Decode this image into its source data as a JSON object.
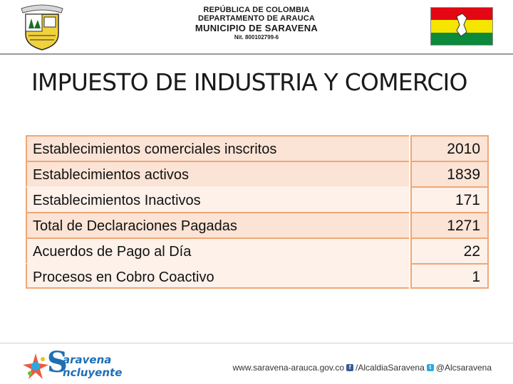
{
  "header": {
    "line1": "REPÚBLICA DE COLOMBIA",
    "line2": "DEPARTAMENTO DE ARAUCA",
    "line3": "MUNICIPIO DE SARAVENA",
    "line4": "Nit. 800102799-6"
  },
  "title": "IMPUESTO DE INDUSTRIA Y COMERCIO",
  "table": {
    "rows": [
      {
        "label": "Establecimientos comerciales inscritos",
        "value": "2010"
      },
      {
        "label": "Establecimientos activos",
        "value": "1839"
      },
      {
        "label": "Establecimientos Inactivos",
        "value": "171"
      },
      {
        "label": "Total de Declaraciones Pagadas",
        "value": "1271"
      },
      {
        "label": "Acuerdos de Pago al Día",
        "value": "22"
      },
      {
        "label": "Procesos en Cobro Coactivo",
        "value": "1"
      }
    ]
  },
  "footer": {
    "brand_line1": "aravena",
    "brand_line2": "ncluyente",
    "website": "www.saravena-arauca.gov.co",
    "facebook": "/AlcaldiaSaravena",
    "twitter": "@Alcsaravena"
  },
  "colors": {
    "table_border": "#f0a775",
    "row_shaded": "#fbe3d5",
    "row_plain": "#fdf1ea",
    "brand_blue": "#1f6fb5",
    "flag_red": "#e30613",
    "flag_yellow": "#f6e500",
    "flag_green": "#0a8a3a"
  },
  "icons": [
    "municipal-crest-icon",
    "saravena-flag-icon",
    "brand-star-icon",
    "facebook-icon",
    "twitter-icon"
  ]
}
